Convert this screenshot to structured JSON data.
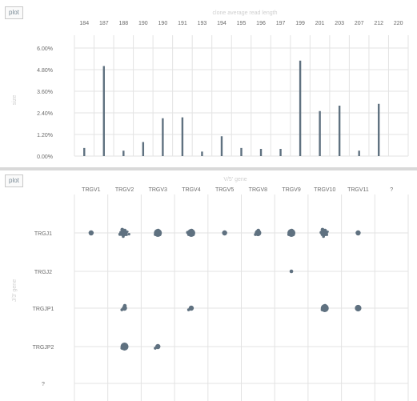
{
  "top_panel": {
    "plot_button": "plot",
    "axis_title": "clone average read length",
    "ylabel": "size"
  },
  "bottom_panel": {
    "plot_button": "plot",
    "axis_title": "V/5' gene",
    "ylabel": "J/3' gene"
  },
  "colors": {
    "mark": "#5f7180",
    "grid": "#e3e3e3",
    "axis_label": "#6b6b6b",
    "faint_label": "#cfcfcf",
    "divider": "#d9d9d9"
  },
  "chart_data": [
    {
      "type": "bar",
      "title": "clone average read length",
      "ylabel": "size",
      "ylim": [
        0,
        6.0
      ],
      "yticks": [
        "0.00%",
        "1.20%",
        "2.40%",
        "3.60%",
        "4.80%",
        "6.00%"
      ],
      "categories": [
        "184",
        "187",
        "188",
        "190",
        "190",
        "191",
        "193",
        "194",
        "195",
        "196",
        "197",
        "199",
        "201",
        "203",
        "207",
        "212",
        "220"
      ],
      "values": [
        0.45,
        5.0,
        0.3,
        0.78,
        2.1,
        2.15,
        0.25,
        1.1,
        0.45,
        0.4,
        0.4,
        5.3,
        2.5,
        2.8,
        0.3,
        2.9,
        0.0
      ]
    },
    {
      "type": "scatter",
      "xlabel": "V/5' gene",
      "ylabel": "J/3' gene",
      "x_categories": [
        "TRGV1",
        "TRGV2",
        "TRGV3",
        "TRGV4",
        "TRGV5",
        "TRGV8",
        "TRGV9",
        "TRGV10",
        "TRGV11",
        "?"
      ],
      "y_categories": [
        "TRGJ1",
        "TRGJ2",
        "TRGJP1",
        "TRGJP2",
        "?"
      ],
      "points": [
        {
          "x": "TRGV1",
          "y": "TRGJ1",
          "count": 1,
          "size": 2
        },
        {
          "x": "TRGV2",
          "y": "TRGJ1",
          "count": 10,
          "size": 3
        },
        {
          "x": "TRGV3",
          "y": "TRGJ1",
          "count": 4,
          "size": 4
        },
        {
          "x": "TRGV4",
          "y": "TRGJ1",
          "count": 5,
          "size": 4
        },
        {
          "x": "TRGV5",
          "y": "TRGJ1",
          "count": 1,
          "size": 2
        },
        {
          "x": "TRGV8",
          "y": "TRGJ1",
          "count": 3,
          "size": 3
        },
        {
          "x": "TRGV9",
          "y": "TRGJ1",
          "count": 4,
          "size": 4
        },
        {
          "x": "TRGV10",
          "y": "TRGJ1",
          "count": 8,
          "size": 3
        },
        {
          "x": "TRGV11",
          "y": "TRGJ1",
          "count": 1,
          "size": 2
        },
        {
          "x": "TRGV9",
          "y": "TRGJ2",
          "count": 1,
          "size": 1
        },
        {
          "x": "TRGV2",
          "y": "TRGJP1",
          "count": 3,
          "size": 2
        },
        {
          "x": "TRGV4",
          "y": "TRGJP1",
          "count": 2,
          "size": 2
        },
        {
          "x": "TRGV10",
          "y": "TRGJP1",
          "count": 3,
          "size": 4
        },
        {
          "x": "TRGV11",
          "y": "TRGJP1",
          "count": 1,
          "size": 3
        },
        {
          "x": "TRGV2",
          "y": "TRGJP2",
          "count": 2,
          "size": 4
        },
        {
          "x": "TRGV3",
          "y": "TRGJP2",
          "count": 2,
          "size": 2
        }
      ]
    }
  ]
}
